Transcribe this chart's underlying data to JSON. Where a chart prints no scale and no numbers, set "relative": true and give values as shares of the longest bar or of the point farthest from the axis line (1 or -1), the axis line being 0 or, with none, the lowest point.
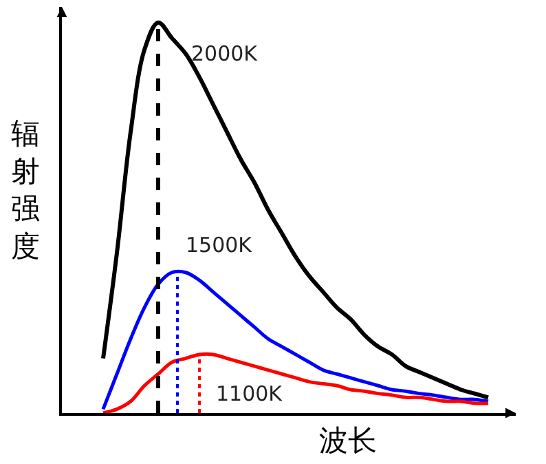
{
  "chart_data": {
    "type": "line",
    "relative": true,
    "xlabel": "波长",
    "ylabel": "辐射强度",
    "legend": false,
    "marker": "none",
    "line_style": "solid",
    "categories": [
      null,
      null,
      null,
      null,
      null,
      null,
      null,
      null,
      null,
      null,
      null,
      null,
      null,
      null,
      null,
      null,
      null,
      null,
      null,
      null,
      null,
      null,
      null,
      null,
      null,
      null,
      null,
      null,
      null
    ],
    "series": [
      {
        "name": "2000K",
        "color": "#000000",
        "values": [
          0.14,
          0.41,
          0.72,
          0.93,
          1.0,
          0.96,
          0.92,
          0.86,
          0.79,
          0.72,
          0.65,
          0.59,
          0.52,
          0.46,
          0.4,
          0.35,
          0.31,
          0.27,
          0.24,
          0.2,
          0.17,
          0.15,
          0.12,
          0.105,
          0.09,
          0.075,
          0.06,
          0.05,
          0.04
        ]
      },
      {
        "name": "1500K",
        "color": "#0000ff",
        "values": [
          0.01,
          0.1,
          0.19,
          0.27,
          0.33,
          0.36,
          0.36,
          0.34,
          0.31,
          0.28,
          0.25,
          0.22,
          0.19,
          0.17,
          0.15,
          0.13,
          0.11,
          0.1,
          0.09,
          0.08,
          0.07,
          0.06,
          0.056,
          0.05,
          0.046,
          0.04,
          0.035,
          0.035,
          0.03
        ]
      },
      {
        "name": "1100K",
        "color": "#ff0000",
        "values": [
          0.0,
          0.01,
          0.03,
          0.07,
          0.1,
          0.13,
          0.14,
          0.15,
          0.15,
          0.14,
          0.13,
          0.12,
          0.11,
          0.1,
          0.09,
          0.08,
          0.075,
          0.07,
          0.06,
          0.056,
          0.05,
          0.046,
          0.04,
          0.04,
          0.035,
          0.03,
          0.03,
          0.025,
          0.025
        ]
      }
    ]
  }
}
